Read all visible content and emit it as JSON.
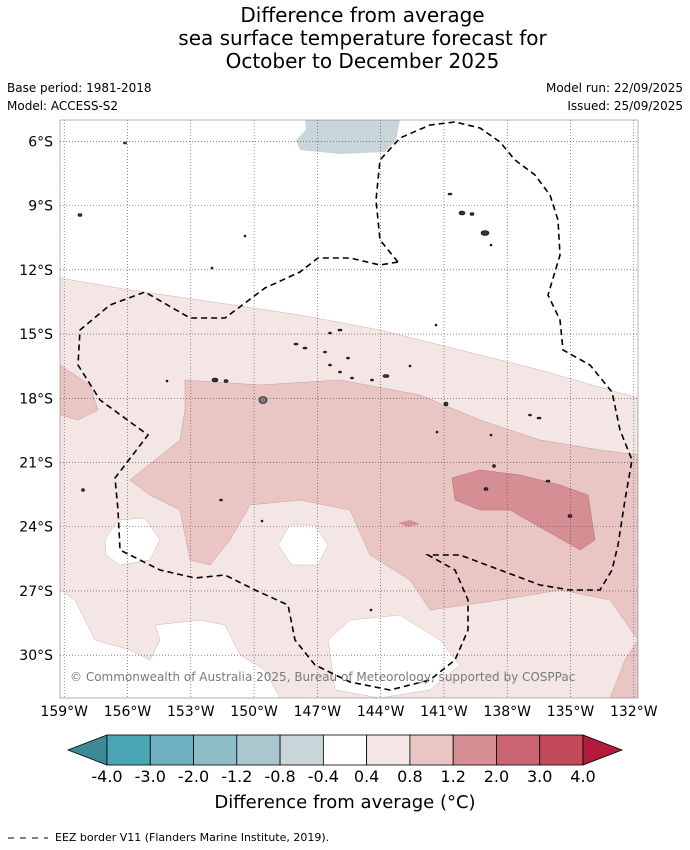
{
  "title": {
    "line1": "Difference from average",
    "line2": "sea surface temperature forecast for",
    "line3": "October to December 2025"
  },
  "meta": {
    "base_period": "Base period: 1981-2018",
    "model": "Model: ACCESS-S2",
    "model_run": "Model run: 22/09/2025",
    "issued": "Issued: 25/09/2025"
  },
  "map": {
    "lat_labels": [
      "6°S",
      "9°S",
      "12°S",
      "15°S",
      "18°S",
      "21°S",
      "24°S",
      "27°S",
      "30°S"
    ],
    "lon_labels": [
      "159°W",
      "156°W",
      "153°W",
      "150°W",
      "147°W",
      "144°W",
      "141°W",
      "138°W",
      "135°W",
      "132°W"
    ],
    "lat_values": [
      -6,
      -9,
      -12,
      -15,
      -18,
      -21,
      -24,
      -27,
      -30
    ],
    "lon_values": [
      -159,
      -156,
      -153,
      -150,
      -147,
      -144,
      -141,
      -138,
      -135,
      -132
    ],
    "copyright": "© Commonwealth of Australia 2025, Bureau of Meteorology, supported by COSPPac"
  },
  "colorbar": {
    "title": "Difference from average (°C)",
    "tick_labels": [
      "-4.0",
      "-3.0",
      "-2.0",
      "-1.2",
      "-0.8",
      "-0.4",
      "0.4",
      "0.8",
      "1.2",
      "2.0",
      "3.0",
      "4.0"
    ],
    "colors": [
      "#3d8a96",
      "#4aa5b5",
      "#6eb0bf",
      "#8ebcc7",
      "#a8c8cd",
      "#c8d6da",
      "#ffffff",
      "#f3e6e5",
      "#e9c6c3",
      "#d48e94",
      "#cb6573",
      "#c24a5b",
      "#b21c3a"
    ]
  },
  "legend": {
    "eez": "EEZ border V11 (Flanders Marine Institute, 2019)."
  }
}
